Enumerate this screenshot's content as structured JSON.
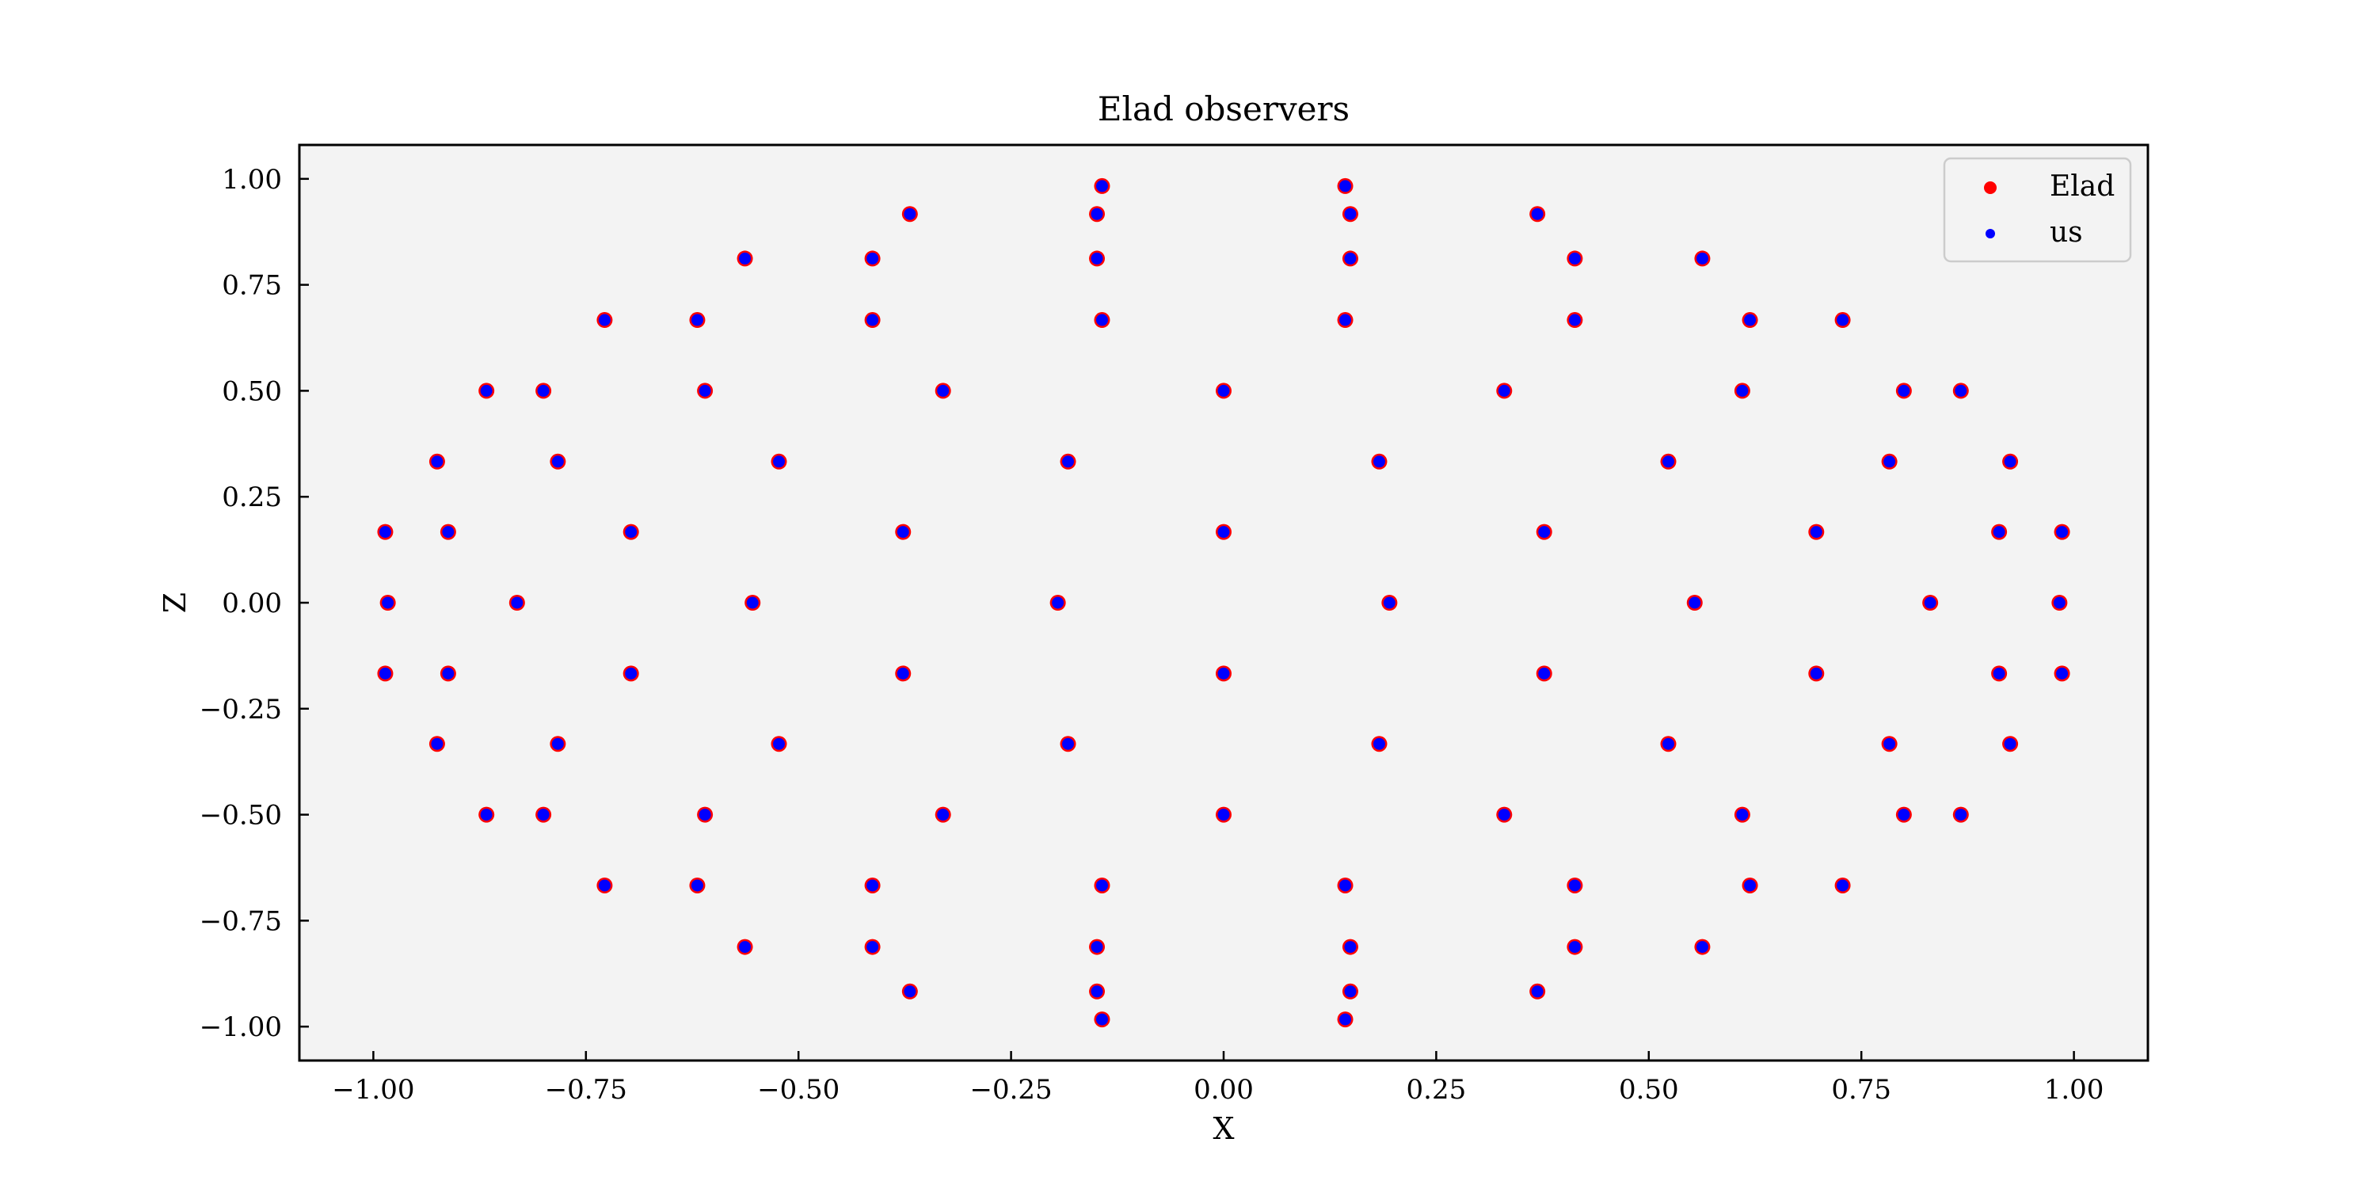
{
  "chart_data": {
    "type": "scatter",
    "title": "Elad observers",
    "xlabel": "X",
    "ylabel": "Z",
    "xlim": [
      -1.087,
      1.087
    ],
    "ylim": [
      -1.08,
      1.08
    ],
    "xticks": [
      -1.0,
      -0.75,
      -0.5,
      -0.25,
      0.0,
      0.25,
      0.5,
      0.75,
      1.0
    ],
    "xtick_labels": [
      "−1.00",
      "−0.75",
      "−0.50",
      "−0.25",
      "0.00",
      "0.25",
      "0.50",
      "0.75",
      "1.00"
    ],
    "yticks": [
      1.0,
      0.75,
      0.5,
      0.25,
      0.0,
      -0.25,
      -0.5,
      -0.75,
      -1.0
    ],
    "ytick_labels": [
      "1.00",
      "0.75",
      "0.50",
      "0.25",
      "0.00",
      "−0.25",
      "−0.50",
      "−0.75",
      "−1.00"
    ],
    "grid": false,
    "legend_position": "top-right",
    "background": "#f3f3f3",
    "points": {
      "x": [
        0.143,
        -0.143,
        -0.369,
        -0.149,
        0.149,
        0.369,
        -0.563,
        -0.413,
        -0.149,
        0.149,
        0.413,
        0.563,
        -0.728,
        -0.619,
        -0.413,
        -0.143,
        0.143,
        0.413,
        0.619,
        0.728,
        -0.867,
        -0.8,
        -0.61,
        -0.33,
        0.0,
        0.33,
        0.61,
        0.8,
        0.867,
        -0.925,
        -0.783,
        -0.523,
        -0.183,
        0.183,
        0.523,
        0.783,
        0.925,
        -0.986,
        -0.912,
        -0.697,
        -0.377,
        0.0,
        0.377,
        0.697,
        0.912,
        0.986,
        -0.983,
        -0.831,
        -0.554,
        -0.195,
        0.195,
        0.554,
        0.831,
        0.983,
        -0.986,
        -0.912,
        -0.697,
        -0.377,
        0.0,
        0.377,
        0.697,
        0.912,
        0.986,
        -0.925,
        -0.783,
        -0.523,
        -0.183,
        0.183,
        0.523,
        0.783,
        0.925,
        -0.867,
        -0.8,
        -0.61,
        -0.33,
        0.0,
        0.33,
        0.61,
        0.8,
        0.867,
        -0.728,
        -0.619,
        -0.413,
        -0.143,
        0.143,
        0.413,
        0.619,
        0.728,
        -0.563,
        -0.413,
        -0.149,
        0.149,
        0.413,
        0.563,
        -0.369,
        -0.149,
        0.149,
        0.369,
        -0.143,
        0.143
      ],
      "y": [
        0.983,
        0.983,
        0.917,
        0.917,
        0.917,
        0.917,
        0.812,
        0.812,
        0.812,
        0.812,
        0.812,
        0.812,
        0.667,
        0.667,
        0.667,
        0.667,
        0.667,
        0.667,
        0.667,
        0.667,
        0.5,
        0.5,
        0.5,
        0.5,
        0.5,
        0.5,
        0.5,
        0.5,
        0.5,
        0.333,
        0.333,
        0.333,
        0.333,
        0.333,
        0.333,
        0.333,
        0.333,
        0.167,
        0.167,
        0.167,
        0.167,
        0.167,
        0.167,
        0.167,
        0.167,
        0.167,
        0.0,
        0.0,
        0.0,
        0.0,
        0.0,
        0.0,
        0.0,
        0.0,
        -0.167,
        -0.167,
        -0.167,
        -0.167,
        -0.167,
        -0.167,
        -0.167,
        -0.167,
        -0.167,
        -0.333,
        -0.333,
        -0.333,
        -0.333,
        -0.333,
        -0.333,
        -0.333,
        -0.333,
        -0.5,
        -0.5,
        -0.5,
        -0.5,
        -0.5,
        -0.5,
        -0.5,
        -0.5,
        -0.5,
        -0.667,
        -0.667,
        -0.667,
        -0.667,
        -0.667,
        -0.667,
        -0.667,
        -0.667,
        -0.812,
        -0.812,
        -0.812,
        -0.812,
        -0.812,
        -0.812,
        -0.917,
        -0.917,
        -0.917,
        -0.917,
        -0.983,
        -0.983
      ]
    },
    "series": [
      {
        "name": "Elad",
        "color": "#ff0000",
        "marker": "large-circle"
      },
      {
        "name": "us",
        "color": "#0000ff",
        "marker": "small-circle"
      }
    ]
  }
}
